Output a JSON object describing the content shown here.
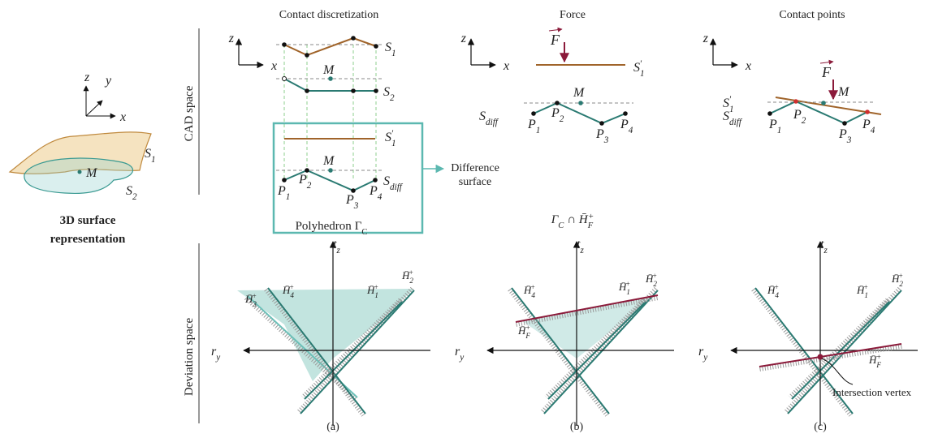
{
  "left": {
    "z": "z",
    "y": "y",
    "x": "x",
    "s1": {
      "text": "S",
      "sub": "1"
    },
    "s2": {
      "text": "S",
      "sub": "2"
    },
    "m": "M",
    "caption": [
      "3D surface",
      "representation"
    ]
  },
  "row_labels": [
    "CAD space",
    "Deviation space"
  ],
  "panels": [
    {
      "title": "Contact discretization",
      "z": "z",
      "x": "x",
      "s1": {
        "text": "S",
        "sub": "1"
      },
      "m_top": "M",
      "s2": {
        "text": "S",
        "sub": "2"
      },
      "s1_prime": {
        "text": "S",
        "sub": "1",
        "sup": "′"
      },
      "m_box": "M",
      "s_diff": {
        "text": "S",
        "sub": "diff"
      },
      "points": [
        {
          "text": "P",
          "sub": "1"
        },
        {
          "text": "P",
          "sub": "2"
        },
        {
          "text": "P",
          "sub": "3"
        },
        {
          "text": "P",
          "sub": "4"
        }
      ],
      "difference": [
        "Difference",
        "surface"
      ],
      "caption": [
        "Polyhedron",
        {
          "text": "Γ",
          "sub": "C"
        }
      ],
      "tz": {
        "text": "t",
        "sub": "z"
      },
      "ry": {
        "text": "r",
        "sub": "y"
      },
      "h": [
        {
          "text": "H̄",
          "sub": "3",
          "sup": "+"
        },
        {
          "text": "H̄",
          "sub": "4",
          "sup": "+"
        },
        {
          "text": "H̄",
          "sub": "1",
          "sup": "+"
        },
        {
          "text": "H̄",
          "sub": "2",
          "sup": "+"
        }
      ],
      "label": "(a)"
    },
    {
      "title": "Force",
      "z": "z",
      "x": "x",
      "f": "F",
      "s1_prime": {
        "text": "S",
        "sub": "1",
        "sup": "′"
      },
      "m": "M",
      "s_diff": {
        "text": "S",
        "sub": "diff"
      },
      "points": [
        {
          "text": "P",
          "sub": "1"
        },
        {
          "text": "P",
          "sub": "2"
        },
        {
          "text": "P",
          "sub": "3"
        },
        {
          "text": "P",
          "sub": "4"
        }
      ],
      "caption": [
        {
          "text": "Γ",
          "sub": "C"
        },
        {
          "text": "∩ H̄",
          "sub": "F",
          "sup": "+"
        }
      ],
      "tz": {
        "text": "t",
        "sub": "z"
      },
      "ry": {
        "text": "r",
        "sub": "y"
      },
      "h": [
        {
          "text": "H̄",
          "sub": "4",
          "sup": "+"
        },
        {
          "text": "H̄",
          "sub": "1",
          "sup": "+"
        },
        {
          "text": "H̄",
          "sub": "2",
          "sup": "+"
        },
        {
          "text": "H̄",
          "sub": "F",
          "sup": "+"
        }
      ],
      "label": "(b)"
    },
    {
      "title": "Contact points",
      "z": "z",
      "x": "x",
      "f": "F",
      "s1_prime": {
        "text": "S",
        "sub": "1",
        "sup": "′"
      },
      "m": "M",
      "s_diff": {
        "text": "S",
        "sub": "diff"
      },
      "points": [
        {
          "text": "P",
          "sub": "1"
        },
        {
          "text": "P",
          "sub": "2"
        },
        {
          "text": "P",
          "sub": "3"
        },
        {
          "text": "P",
          "sub": "4"
        }
      ],
      "tz": {
        "text": "t",
        "sub": "z"
      },
      "ry": {
        "text": "r",
        "sub": "y"
      },
      "h": [
        {
          "text": "H̄",
          "sub": "4",
          "sup": "+"
        },
        {
          "text": "H̄",
          "sub": "1",
          "sup": "+"
        },
        {
          "text": "H̄",
          "sub": "2",
          "sup": "+"
        },
        {
          "text": "H̄",
          "sub": "F",
          "sup": "+"
        }
      ],
      "annotation": "Intersection vertex",
      "label": "(c)"
    }
  ]
}
